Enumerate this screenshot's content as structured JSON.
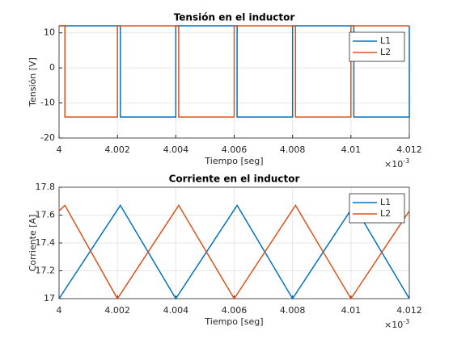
{
  "chart_data": [
    {
      "type": "line",
      "title": "Tensión en el inductor",
      "xlabel": "Tiempo [seg]",
      "ylabel": "Tensión [V]",
      "x_exponent_base": "×10",
      "x_exponent": "-3",
      "xlim": [
        4,
        4.012
      ],
      "xticks": [
        4,
        4.002,
        4.004,
        4.006,
        4.008,
        4.01,
        4.012
      ],
      "ylim": [
        -20,
        12
      ],
      "yticks": [
        -20,
        -10,
        0,
        10
      ],
      "grid": true,
      "legend": "northeast",
      "series": [
        {
          "name": "L1",
          "color": "#0072bd",
          "x": [
            4,
            4.0021,
            4.0021,
            4.004,
            4.004,
            4.0061,
            4.0061,
            4.008,
            4.008,
            4.0101,
            4.0101,
            4.012,
            4.012
          ],
          "values": [
            12,
            12,
            -14,
            -14,
            12,
            12,
            -14,
            -14,
            12,
            12,
            -14,
            -14,
            12
          ]
        },
        {
          "name": "L2",
          "color": "#d95319",
          "x": [
            4,
            4.0002,
            4.0002,
            4.002,
            4.002,
            4.0041,
            4.0041,
            4.006,
            4.006,
            4.0081,
            4.0081,
            4.01,
            4.01,
            4.012
          ],
          "values": [
            12,
            12,
            -14,
            -14,
            12,
            12,
            -14,
            -14,
            12,
            12,
            -14,
            -14,
            12,
            12
          ]
        }
      ]
    },
    {
      "type": "line",
      "title": "Corriente en el inductor",
      "xlabel": "Tiempo [seg]",
      "ylabel": "Corriente [A]",
      "x_exponent_base": "×10",
      "x_exponent": "-3",
      "xlim": [
        4,
        4.012
      ],
      "xticks": [
        4,
        4.002,
        4.004,
        4.006,
        4.008,
        4.01,
        4.012
      ],
      "ylim": [
        17,
        17.8
      ],
      "yticks": [
        17,
        17.2,
        17.4,
        17.6,
        17.8
      ],
      "grid": true,
      "legend": "northeast",
      "series": [
        {
          "name": "L1",
          "color": "#0072bd",
          "x": [
            4,
            4.0021,
            4.004,
            4.0061,
            4.008,
            4.0101,
            4.012
          ],
          "values": [
            17,
            17.67,
            17,
            17.67,
            17,
            17.67,
            17
          ]
        },
        {
          "name": "L2",
          "color": "#d95319",
          "x": [
            4,
            4.0002,
            4.002,
            4.0041,
            4.006,
            4.0081,
            4.01,
            4.012
          ],
          "values": [
            17.63,
            17.67,
            17,
            17.67,
            17,
            17.67,
            17,
            17.63
          ]
        }
      ]
    }
  ]
}
